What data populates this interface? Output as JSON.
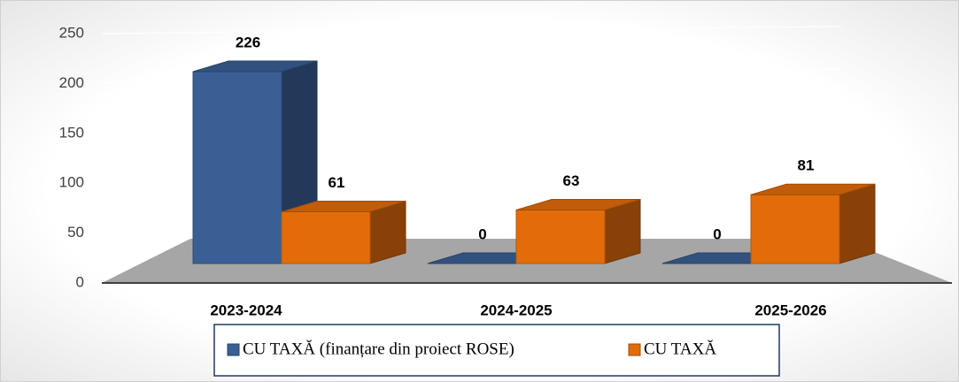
{
  "chart_data": {
    "type": "bar3d",
    "categories": [
      "2023-2024",
      "2024-2025",
      "2025-2026"
    ],
    "series": [
      {
        "name": "CU TAXĂ (finanțare din proiect ROSE)",
        "color": "#3a5f94",
        "values": [
          226,
          0,
          0
        ]
      },
      {
        "name": "CU TAXĂ",
        "color": "#e36c0a",
        "values": [
          61,
          63,
          81
        ]
      }
    ],
    "ylim": [
      0,
      250
    ],
    "yticks": [
      0,
      50,
      100,
      150,
      200,
      250
    ],
    "grid": true,
    "legend": "bottom"
  }
}
